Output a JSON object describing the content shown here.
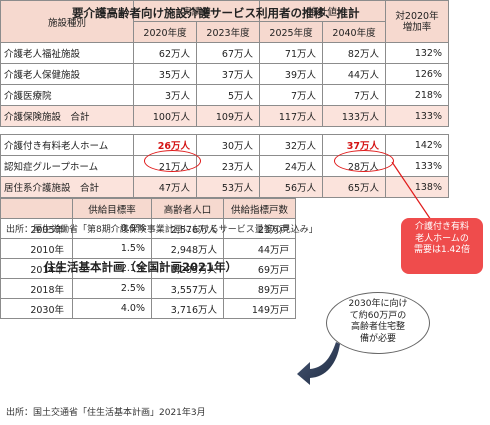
{
  "table1": {
    "title": "要介護高齢者向け施設介護サービス利用者の推移、推計",
    "col_facility": "施設種別",
    "group_actual": "実績値",
    "group_estimate": "推計値",
    "col_increase": [
      "対2020年",
      "増加率"
    ],
    "years": [
      "2020年度",
      "2023年度",
      "2025年度",
      "2040年度"
    ],
    "rows": [
      {
        "name": "介護老人福祉施設",
        "values": [
          "62万人",
          "67万人",
          "71万人",
          "82万人"
        ],
        "rate": "132%"
      },
      {
        "name": "介護老人保健施設",
        "values": [
          "35万人",
          "37万人",
          "39万人",
          "44万人"
        ],
        "rate": "126%"
      },
      {
        "name": "介護医療院",
        "values": [
          "3万人",
          "5万人",
          "7万人",
          "7万人"
        ],
        "rate": "218%"
      },
      {
        "name": "介護保険施設　合計",
        "values": [
          "100万人",
          "109万人",
          "117万人",
          "133万人"
        ],
        "rate": "133%"
      },
      {
        "name": "介護付き有料老人ホーム",
        "values": [
          "26万人",
          "30万人",
          "32万人",
          "37万人"
        ],
        "rate": "142%"
      },
      {
        "name": "認知症グループホーム",
        "values": [
          "21万人",
          "23万人",
          "24万人",
          "28万人"
        ],
        "rate": "133%"
      },
      {
        "name": "居住系介護施設　合計",
        "values": [
          "47万人",
          "53万人",
          "56万人",
          "65万人"
        ],
        "rate": "138%"
      }
    ],
    "source": "出所：厚生労働省「第8期介護保険事業計画におけるサービス量等の見込み」"
  },
  "callout": {
    "lines": [
      "介護付き有料",
      "老人ホームの",
      "需要は1.42倍"
    ],
    "color": "#ef4c4c"
  },
  "table2": {
    "title": "住生活基本計画（全国計画2021年）",
    "headers": [
      "",
      "供給目標率",
      "高齢者人口",
      "供給指標戸数"
    ],
    "rows": [
      {
        "year": "2005年",
        "rate": "0.9%",
        "pop": "2,576万人",
        "units": "23万戸"
      },
      {
        "year": "2010年",
        "rate": "1.5%",
        "pop": "2,948万人",
        "units": "44万戸"
      },
      {
        "year": "2014年",
        "rate": "2.1%",
        "pop": "3,285万人",
        "units": "69万戸"
      },
      {
        "year": "2018年",
        "rate": "2.5%",
        "pop": "3,557万人",
        "units": "89万戸"
      },
      {
        "year": "2030年",
        "rate": "4.0%",
        "pop": "3,716万人",
        "units": "149万戸"
      }
    ],
    "source": "出所：国土交通省「住生活基本計画」2021年3月"
  },
  "bubble": {
    "lines": [
      "2030年に向け",
      "て約60万戸の",
      "高齢者住宅整",
      "備が必要"
    ]
  }
}
